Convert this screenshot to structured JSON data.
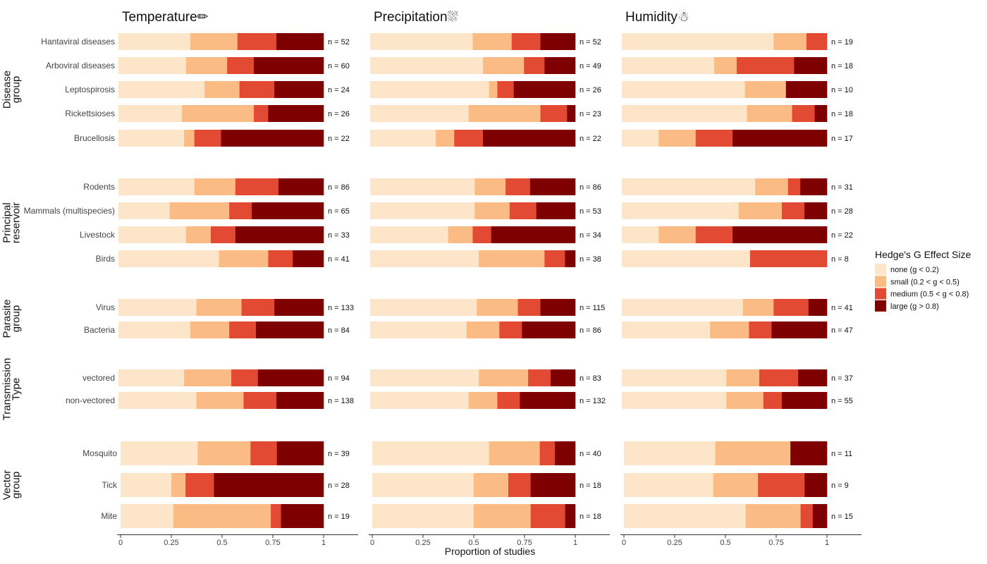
{
  "chart_data": {
    "type": "bar",
    "stacked": "horizontal-proportion",
    "xlabel": "Proportion of studies",
    "x_ticks": [
      "0",
      "0.25",
      "0.5",
      "0.75",
      "1"
    ],
    "xlim": [
      0,
      1
    ],
    "legend": {
      "title": "Hedge's G Effect Size",
      "position": "right",
      "items": [
        {
          "key": "none",
          "label": "none (g < 0.2)",
          "color": "#fde5c9"
        },
        {
          "key": "small",
          "label": "small (0.2 < g < 0.5)",
          "color": "#fbbb84"
        },
        {
          "key": "medium",
          "label": "medium (0.5 < g < 0.8)",
          "color": "#e34a33"
        },
        {
          "key": "large",
          "label": "large (g > 0.8)",
          "color": "#7f0000"
        }
      ]
    },
    "panels": [
      {
        "title": "Temperature✏"
      },
      {
        "title": "Precipitation⛆"
      },
      {
        "title": "Humidity☃"
      }
    ],
    "groups": [
      {
        "label": [
          "Disease",
          "group"
        ],
        "rows": [
          {
            "label": "Hantaviral diseases",
            "n": [
              "n = 52",
              "n = 52",
              "n = 19"
            ],
            "values": [
              [
                0.35,
                0.23,
                0.19,
                0.23
              ],
              [
                0.5,
                0.19,
                0.14,
                0.17
              ],
              [
                0.74,
                0.16,
                0.1,
                0.0
              ]
            ]
          },
          {
            "label": "Arboviral diseases",
            "n": [
              "n = 60",
              "n = 49",
              "n = 18"
            ],
            "values": [
              [
                0.33,
                0.2,
                0.13,
                0.34
              ],
              [
                0.55,
                0.2,
                0.1,
                0.15
              ],
              [
                0.45,
                0.11,
                0.28,
                0.16
              ]
            ]
          },
          {
            "label": "Leptospirosis",
            "n": [
              "n = 24",
              "n = 26",
              "n = 10"
            ],
            "values": [
              [
                0.42,
                0.17,
                0.17,
                0.24
              ],
              [
                0.58,
                0.04,
                0.08,
                0.3
              ],
              [
                0.6,
                0.2,
                0.0,
                0.2
              ]
            ]
          },
          {
            "label": "Rickettsioses",
            "n": [
              "n = 26",
              "n = 23",
              "n = 18"
            ],
            "values": [
              [
                0.31,
                0.35,
                0.07,
                0.27
              ],
              [
                0.48,
                0.35,
                0.13,
                0.04
              ],
              [
                0.61,
                0.22,
                0.11,
                0.06
              ]
            ]
          },
          {
            "label": "Brucellosis",
            "n": [
              "n = 22",
              "n = 22",
              "n = 17"
            ],
            "values": [
              [
                0.32,
                0.05,
                0.13,
                0.5
              ],
              [
                0.32,
                0.09,
                0.14,
                0.45
              ],
              [
                0.18,
                0.18,
                0.18,
                0.46
              ]
            ]
          }
        ]
      },
      {
        "label": [
          "Principal",
          "reservoir"
        ],
        "rows": [
          {
            "label": "Rodents",
            "n": [
              "n = 86",
              "n = 86",
              "n = 31"
            ],
            "values": [
              [
                0.37,
                0.2,
                0.21,
                0.22
              ],
              [
                0.51,
                0.15,
                0.12,
                0.22
              ],
              [
                0.65,
                0.16,
                0.06,
                0.13
              ]
            ]
          },
          {
            "label": "Mammals (multispecies)",
            "n": [
              "n = 65",
              "n = 53",
              "n = 28"
            ],
            "values": [
              [
                0.25,
                0.29,
                0.11,
                0.35
              ],
              [
                0.51,
                0.17,
                0.13,
                0.19
              ],
              [
                0.57,
                0.21,
                0.11,
                0.11
              ]
            ]
          },
          {
            "label": "Livestock",
            "n": [
              "n = 33",
              "n = 34",
              "n = 22"
            ],
            "values": [
              [
                0.33,
                0.12,
                0.12,
                0.43
              ],
              [
                0.38,
                0.12,
                0.09,
                0.41
              ],
              [
                0.18,
                0.18,
                0.18,
                0.46
              ]
            ]
          },
          {
            "label": "Birds",
            "n": [
              "n = 41",
              "n = 38",
              "n = 8"
            ],
            "values": [
              [
                0.49,
                0.24,
                0.12,
                0.15
              ],
              [
                0.53,
                0.32,
                0.1,
                0.05
              ],
              [
                0.625,
                0.0,
                0.375,
                0.0
              ]
            ]
          }
        ]
      },
      {
        "label": [
          "Parasite",
          "group"
        ],
        "rows": [
          {
            "label": "Virus",
            "n": [
              "n = 133",
              "n = 115",
              "n = 41"
            ],
            "values": [
              [
                0.38,
                0.22,
                0.16,
                0.24
              ],
              [
                0.52,
                0.2,
                0.11,
                0.17
              ],
              [
                0.59,
                0.15,
                0.17,
                0.09
              ]
            ]
          },
          {
            "label": "Bacteria",
            "n": [
              "n = 84",
              "n = 86",
              "n = 47"
            ],
            "values": [
              [
                0.35,
                0.19,
                0.13,
                0.33
              ],
              [
                0.47,
                0.16,
                0.11,
                0.26
              ],
              [
                0.43,
                0.19,
                0.11,
                0.27
              ]
            ]
          }
        ]
      },
      {
        "label": [
          "Transmission",
          "Type"
        ],
        "rows": [
          {
            "label": "vectored",
            "n": [
              "n = 94",
              "n = 83",
              "n = 37"
            ],
            "values": [
              [
                0.32,
                0.23,
                0.13,
                0.32
              ],
              [
                0.53,
                0.24,
                0.11,
                0.12
              ],
              [
                0.51,
                0.16,
                0.19,
                0.14
              ]
            ]
          },
          {
            "label": "non-vectored",
            "n": [
              "n = 138",
              "n = 132",
              "n = 55"
            ],
            "values": [
              [
                0.38,
                0.23,
                0.16,
                0.23
              ],
              [
                0.48,
                0.14,
                0.11,
                0.27
              ],
              [
                0.51,
                0.18,
                0.09,
                0.22
              ]
            ]
          }
        ]
      },
      {
        "label": [
          "Vector",
          "group"
        ],
        "rows": [
          {
            "label": "Mosquito",
            "n": [
              "n = 39",
              "n = 40",
              "n = 11"
            ],
            "values": [
              [
                0.38,
                0.26,
                0.13,
                0.23
              ],
              [
                0.575,
                0.25,
                0.075,
                0.1
              ],
              [
                0.45,
                0.37,
                0.0,
                0.18
              ]
            ]
          },
          {
            "label": "Tick",
            "n": [
              "n = 28",
              "n = 18",
              "n = 9"
            ],
            "values": [
              [
                0.25,
                0.07,
                0.14,
                0.54
              ],
              [
                0.5,
                0.17,
                0.11,
                0.22
              ],
              [
                0.44,
                0.22,
                0.23,
                0.11
              ]
            ]
          },
          {
            "label": "Mite",
            "n": [
              "n = 19",
              "n = 18",
              "n = 15"
            ],
            "values": [
              [
                0.26,
                0.48,
                0.05,
                0.21
              ],
              [
                0.5,
                0.28,
                0.17,
                0.05
              ],
              [
                0.6,
                0.27,
                0.06,
                0.07
              ]
            ]
          }
        ]
      }
    ]
  }
}
